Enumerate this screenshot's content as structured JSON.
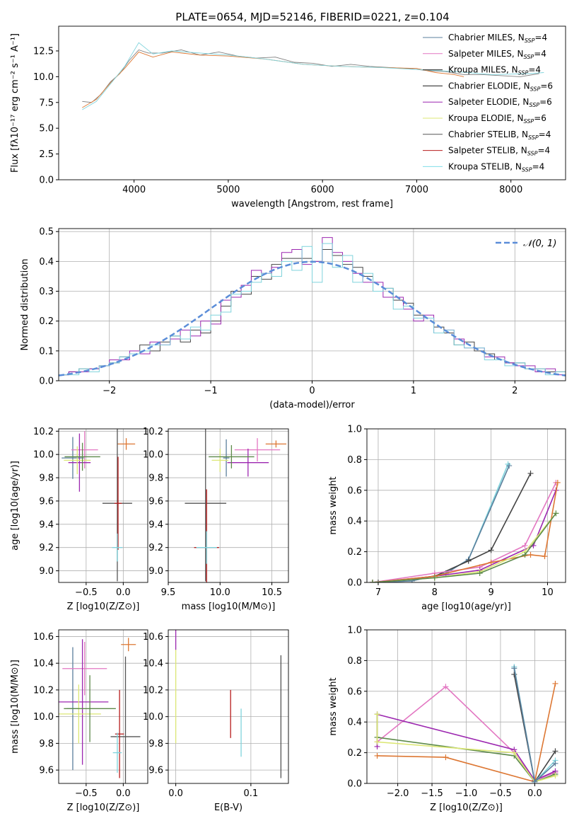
{
  "figure_title": "PLATE=0654, MJD=52146, FIBERID=0221, z=0.104",
  "legend_series": [
    {
      "label": "Chabrier MILES, N",
      "sub": "SSP",
      "suffix": "=4",
      "color": "#5b7f9c"
    },
    {
      "label": "Salpeter MILES, N",
      "sub": "SSP",
      "suffix": "=4",
      "color": "#e377c2"
    },
    {
      "label": "Kroupa MILES, N",
      "sub": "SSP",
      "suffix": "=4",
      "color": "#2a2a2a"
    },
    {
      "label": "Chabrier ELODIE, N",
      "sub": "SSP",
      "suffix": "=6",
      "color": "#1f1f1f"
    },
    {
      "label": "Salpeter ELODIE, N",
      "sub": "SSP",
      "suffix": "=6",
      "color": "#9c27b0"
    },
    {
      "label": "Kroupa ELODIE, N",
      "sub": "SSP",
      "suffix": "=6",
      "color": "#dce775"
    },
    {
      "label": "Chabrier STELIB, N",
      "sub": "SSP",
      "suffix": "=4",
      "color": "#555555"
    },
    {
      "label": "Salpeter STELIB, N",
      "sub": "SSP",
      "suffix": "=4",
      "color": "#b71c1c"
    },
    {
      "label": "Kroupa STELIB, N",
      "sub": "SSP",
      "suffix": "=4",
      "color": "#80deea"
    }
  ],
  "chart_data": [
    {
      "id": "spectrum",
      "type": "line",
      "xlabel": "wavelength [Angstrom, rest frame]",
      "ylabel": "Flux [fλ10⁻¹⁷ erg cm⁻² s⁻¹ A⁻¹]",
      "xlim": [
        3200,
        8580
      ],
      "ylim": [
        0,
        14.9
      ],
      "xticks": [
        4000,
        5000,
        6000,
        7000,
        8000
      ],
      "yticks": [
        0.0,
        2.5,
        5.0,
        7.5,
        10.0,
        12.5
      ],
      "series": [
        {
          "color": "#808080",
          "x": [
            3450,
            3550,
            3650,
            3750,
            3850,
            3950,
            4050,
            4150,
            4300,
            4500,
            4700,
            4900,
            5100,
            5300,
            5500,
            5700,
            5900,
            6100,
            6300,
            6500,
            6700,
            6900,
            7100,
            7300,
            7500,
            7700,
            7900,
            8100,
            8300
          ],
          "y": [
            7.6,
            7.5,
            8.3,
            9.5,
            10.3,
            11.6,
            12.6,
            12.3,
            12.3,
            12.6,
            12.1,
            12.4,
            12.0,
            11.8,
            11.9,
            11.4,
            11.3,
            11.0,
            11.2,
            11.0,
            10.9,
            10.8,
            10.6,
            10.5,
            10.2,
            10.2,
            10.1,
            10.0,
            10.3
          ]
        },
        {
          "color": "#dd7733",
          "x": [
            3450,
            3600,
            3750,
            3900,
            4050,
            4200,
            4400,
            4700,
            5000,
            5400,
            5800,
            6200,
            6600,
            7000,
            7200,
            7400,
            7500
          ],
          "y": [
            7.0,
            7.8,
            9.4,
            10.8,
            12.4,
            11.9,
            12.4,
            12.1,
            12.0,
            11.7,
            11.2,
            11.0,
            10.9,
            10.8,
            10.4,
            10.2,
            10.0
          ]
        },
        {
          "color": "#7fd3dc",
          "x": [
            3450,
            3600,
            3750,
            3900,
            4050,
            4200,
            4400,
            4700,
            5000,
            5400,
            5800,
            6200,
            6600,
            7000,
            7400,
            7800,
            8200,
            8350
          ],
          "y": [
            6.8,
            7.6,
            9.3,
            11.0,
            13.3,
            12.2,
            12.5,
            12.3,
            12.1,
            11.7,
            11.2,
            11.0,
            10.9,
            10.7,
            10.5,
            10.2,
            10.3,
            10.4
          ]
        }
      ]
    },
    {
      "id": "residuals",
      "type": "bar",
      "xlabel": "(data-model)/error",
      "ylabel": "Normed distribution",
      "xlim": [
        -2.5,
        2.5
      ],
      "ylim": [
        0,
        0.51
      ],
      "xticks": [
        -2,
        -1,
        0,
        1,
        2
      ],
      "yticks": [
        0.0,
        0.1,
        0.2,
        0.3,
        0.4,
        0.5
      ],
      "legend": "𝒩(0, 1)",
      "bin_edges": [
        -2.5,
        -2.4,
        -2.3,
        -2.2,
        -2.1,
        -2.0,
        -1.9,
        -1.8,
        -1.7,
        -1.6,
        -1.5,
        -1.4,
        -1.3,
        -1.2,
        -1.1,
        -1.0,
        -0.9,
        -0.8,
        -0.7,
        -0.6,
        -0.5,
        -0.4,
        -0.3,
        -0.2,
        -0.1,
        0.0,
        0.1,
        0.2,
        0.3,
        0.4,
        0.5,
        0.6,
        0.7,
        0.8,
        0.9,
        1.0,
        1.1,
        1.2,
        1.3,
        1.4,
        1.5,
        1.6,
        1.7,
        1.8,
        1.9,
        2.0,
        2.1,
        2.2,
        2.3,
        2.4,
        2.5
      ],
      "series": [
        {
          "color": "#444444",
          "values": [
            0.02,
            0.03,
            0.04,
            0.04,
            0.05,
            0.06,
            0.08,
            0.09,
            0.12,
            0.1,
            0.13,
            0.15,
            0.13,
            0.17,
            0.16,
            0.2,
            0.25,
            0.3,
            0.29,
            0.35,
            0.34,
            0.39,
            0.41,
            0.41,
            0.41,
            0.4,
            0.44,
            0.42,
            0.39,
            0.38,
            0.35,
            0.3,
            0.31,
            0.27,
            0.26,
            0.22,
            0.21,
            0.18,
            0.16,
            0.12,
            0.13,
            0.1,
            0.09,
            0.07,
            0.06,
            0.06,
            0.04,
            0.04,
            0.03,
            0.03
          ]
        },
        {
          "color": "#9c27b0",
          "values": [
            0.02,
            0.03,
            0.03,
            0.04,
            0.05,
            0.07,
            0.07,
            0.1,
            0.09,
            0.13,
            0.12,
            0.14,
            0.17,
            0.15,
            0.2,
            0.19,
            0.27,
            0.28,
            0.32,
            0.37,
            0.36,
            0.38,
            0.43,
            0.44,
            0.39,
            0.4,
            0.48,
            0.43,
            0.4,
            0.36,
            0.33,
            0.33,
            0.28,
            0.28,
            0.24,
            0.2,
            0.22,
            0.16,
            0.17,
            0.14,
            0.11,
            0.11,
            0.08,
            0.08,
            0.06,
            0.05,
            0.05,
            0.03,
            0.04,
            0.02
          ]
        },
        {
          "color": "#7fd3dc",
          "values": [
            0.02,
            0.02,
            0.04,
            0.03,
            0.05,
            0.06,
            0.08,
            0.09,
            0.1,
            0.12,
            0.12,
            0.15,
            0.14,
            0.18,
            0.17,
            0.22,
            0.23,
            0.29,
            0.3,
            0.33,
            0.36,
            0.35,
            0.4,
            0.37,
            0.45,
            0.33,
            0.46,
            0.38,
            0.42,
            0.33,
            0.36,
            0.3,
            0.31,
            0.24,
            0.25,
            0.21,
            0.21,
            0.16,
            0.17,
            0.12,
            0.11,
            0.11,
            0.07,
            0.07,
            0.05,
            0.06,
            0.04,
            0.04,
            0.02,
            0.03
          ]
        }
      ],
      "normal_curve": {
        "color": "#5b8dd8",
        "mean": 0,
        "sd": 1
      }
    },
    {
      "id": "age_vs_Z",
      "type": "scatter",
      "xlabel": "Z [log10(Z/Z⊙)]",
      "ylabel": "age  [log10(age/yr)]",
      "xlim": [
        -0.87,
        0.33
      ],
      "ylim": [
        8.9,
        10.22
      ],
      "xticks": [
        -0.5,
        0.0
      ],
      "yticks": [
        9.0,
        9.2,
        9.4,
        9.6,
        9.8,
        10.0,
        10.2
      ],
      "points": [
        {
          "color": "#5b7f9c",
          "x": -0.68,
          "y": 9.97,
          "xerr": 0.15,
          "yerr": 0.18
        },
        {
          "color": "#e377c2",
          "x": -0.52,
          "y": 10.04,
          "xerr": 0.18,
          "yerr": 0.16
        },
        {
          "color": "#9c27b0",
          "x": -0.59,
          "y": 9.93,
          "xerr": 0.15,
          "yerr": 0.25
        },
        {
          "color": "#dce775",
          "x": -0.62,
          "y": 9.95,
          "xerr": 0.18,
          "yerr": 0.12
        },
        {
          "color": "#5d8a4a",
          "x": -0.55,
          "y": 9.98,
          "xerr": 0.24,
          "yerr": 0.12
        },
        {
          "color": "#dd7733",
          "x": 0.04,
          "y": 10.09,
          "xerr": 0.12,
          "yerr": 0.05
        },
        {
          "color": "#555555",
          "x": -0.08,
          "y": 9.58,
          "xerr": 0.2,
          "yerr": 0.67
        },
        {
          "color": "#b71c1c",
          "x": -0.07,
          "y": 9.58,
          "xerr": 0.05,
          "yerr": 0.4
        },
        {
          "color": "#7fd3dc",
          "x": -0.08,
          "y": 9.2,
          "xerr": 0.07,
          "yerr": 0.12
        }
      ]
    },
    {
      "id": "age_vs_mass",
      "type": "scatter",
      "xlabel": "mass [log10(M/M⊙)]",
      "ylabel": "",
      "xlim": [
        9.5,
        10.66
      ],
      "ylim": [
        8.9,
        10.22
      ],
      "xticks": [
        9.5,
        10.0,
        10.5
      ],
      "yticks": [
        9.0,
        9.2,
        9.4,
        9.6,
        9.8,
        10.0,
        10.2
      ],
      "points": [
        {
          "color": "#5b7f9c",
          "x": 10.06,
          "y": 9.97,
          "xerr": 0.03,
          "yerr": 0.16
        },
        {
          "color": "#e377c2",
          "x": 10.36,
          "y": 10.04,
          "xerr": 0.22,
          "yerr": 0.1
        },
        {
          "color": "#9c27b0",
          "x": 10.27,
          "y": 9.93,
          "xerr": 0.2,
          "yerr": 0.12
        },
        {
          "color": "#dce775",
          "x": 10.0,
          "y": 9.95,
          "xerr": 0.08,
          "yerr": 0.1
        },
        {
          "color": "#5d8a4a",
          "x": 10.11,
          "y": 9.98,
          "xerr": 0.22,
          "yerr": 0.1
        },
        {
          "color": "#dd7733",
          "x": 10.54,
          "y": 10.09,
          "xerr": 0.1,
          "yerr": 0.03
        },
        {
          "color": "#555555",
          "x": 9.86,
          "y": 9.58,
          "xerr": 0.2,
          "yerr": 0.67
        },
        {
          "color": "#b71c1c",
          "x": 9.87,
          "y": 9.2,
          "xerr": 0.12,
          "yerr": 0.5
        },
        {
          "color": "#7fd3dc",
          "x": 9.87,
          "y": 9.2,
          "xerr": 0.1,
          "yerr": 0.14
        }
      ]
    },
    {
      "id": "massweight_vs_age",
      "type": "line",
      "xlabel": "age  [log10(age/yr)]",
      "ylabel": "mass weight",
      "xlim": [
        6.8,
        10.32
      ],
      "ylim": [
        0,
        1.0
      ],
      "xticks": [
        7,
        8,
        9,
        10
      ],
      "yticks": [
        0.0,
        0.2,
        0.4,
        0.6,
        0.8,
        1.0
      ],
      "series": [
        {
          "color": "#7fd3dc",
          "x": [
            6.9,
            7.6,
            8.2,
            8.6,
            9.3
          ],
          "y": [
            0.0,
            0.01,
            0.06,
            0.15,
            0.77
          ]
        },
        {
          "color": "#5b7f9c",
          "x": [
            6.9,
            7.6,
            8.2,
            8.6,
            9.32
          ],
          "y": [
            0.0,
            0.01,
            0.06,
            0.15,
            0.76
          ]
        },
        {
          "color": "#444444",
          "x": [
            7.0,
            8.0,
            8.6,
            9.0,
            9.7
          ],
          "y": [
            0.0,
            0.04,
            0.14,
            0.21,
            0.71
          ]
        },
        {
          "color": "#e377c2",
          "x": [
            6.9,
            8.0,
            8.8,
            9.6,
            10.15
          ],
          "y": [
            0.0,
            0.06,
            0.1,
            0.24,
            0.65
          ]
        },
        {
          "color": "#9c27b0",
          "x": [
            6.9,
            8.0,
            8.8,
            9.75,
            10.15
          ],
          "y": [
            0.0,
            0.04,
            0.08,
            0.24,
            0.6
          ]
        },
        {
          "color": "#dd7733",
          "x": [
            6.9,
            8.0,
            9.0,
            9.7,
            9.95,
            10.18
          ],
          "y": [
            0.0,
            0.04,
            0.13,
            0.18,
            0.17,
            0.65
          ]
        },
        {
          "color": "#dce775",
          "x": [
            6.9,
            8.0,
            8.8,
            9.6,
            10.15
          ],
          "y": [
            0.0,
            0.03,
            0.07,
            0.2,
            0.45
          ]
        },
        {
          "color": "#5d8a4a",
          "x": [
            6.9,
            8.0,
            8.8,
            9.6,
            10.15
          ],
          "y": [
            0.0,
            0.03,
            0.06,
            0.18,
            0.45
          ]
        }
      ]
    },
    {
      "id": "mass_vs_Z",
      "type": "scatter",
      "xlabel": "Z [log10(Z/Z⊙)]",
      "ylabel": "mass [log10(M/M⊙)]",
      "xlim": [
        -0.87,
        0.33
      ],
      "ylim": [
        9.5,
        10.65
      ],
      "xticks": [
        -0.5,
        0.0
      ],
      "yticks": [
        9.6,
        9.8,
        10.0,
        10.2,
        10.4,
        10.6
      ],
      "points": [
        {
          "color": "#5b7f9c",
          "x": -0.68,
          "y": 10.06,
          "xerr": 0.08,
          "yerr": 0.46
        },
        {
          "color": "#e377c2",
          "x": -0.52,
          "y": 10.36,
          "xerr": 0.3,
          "yerr": 0.2
        },
        {
          "color": "#9c27b0",
          "x": -0.55,
          "y": 10.11,
          "xerr": 0.35,
          "yerr": 0.47
        },
        {
          "color": "#dce775",
          "x": -0.6,
          "y": 10.02,
          "xerr": 0.3,
          "yerr": 0.22
        },
        {
          "color": "#5d8a4a",
          "x": -0.45,
          "y": 10.06,
          "xerr": 0.35,
          "yerr": 0.25
        },
        {
          "color": "#dd7733",
          "x": 0.07,
          "y": 10.54,
          "xerr": 0.1,
          "yerr": 0.05
        },
        {
          "color": "#555555",
          "x": 0.03,
          "y": 9.85,
          "xerr": 0.2,
          "yerr": 0.6
        },
        {
          "color": "#b71c1c",
          "x": -0.05,
          "y": 9.87,
          "xerr": 0.06,
          "yerr": 0.33
        },
        {
          "color": "#7fd3dc",
          "x": -0.08,
          "y": 9.73,
          "xerr": 0.06,
          "yerr": 0.15
        }
      ]
    },
    {
      "id": "mass_vs_EBV",
      "type": "scatter",
      "xlabel": "E(B-V)",
      "ylabel": "",
      "xlim": [
        -0.01,
        0.15
      ],
      "ylim": [
        9.5,
        10.65
      ],
      "xticks": [
        0.0,
        0.1
      ],
      "yticks": [
        9.6,
        9.8,
        10.0,
        10.2,
        10.4,
        10.6
      ],
      "points": [
        {
          "color": "#9c27b0",
          "x": 0.0,
          "y": 10.58,
          "xerr": 0,
          "yerr": 0.08
        },
        {
          "color": "#dce775",
          "x": 0.0,
          "y": 10.15,
          "xerr": 0,
          "yerr": 0.35
        },
        {
          "color": "#b71c1c",
          "x": 0.073,
          "y": 10.02,
          "xerr": 0,
          "yerr": 0.18
        },
        {
          "color": "#7fd3dc",
          "x": 0.087,
          "y": 9.88,
          "xerr": 0,
          "yerr": 0.18
        },
        {
          "color": "#555555",
          "x": 0.14,
          "y": 10.0,
          "xerr": 0,
          "yerr": 0.46
        }
      ]
    },
    {
      "id": "massweight_vs_Z",
      "type": "line",
      "xlabel": "Z [log10(Z/Z⊙)]",
      "ylabel": "mass weight",
      "xlim": [
        -2.45,
        0.45
      ],
      "ylim": [
        0,
        1.0
      ],
      "xticks": [
        -2.0,
        -1.5,
        -1.0,
        -0.5,
        0.0
      ],
      "yticks": [
        0.0,
        0.2,
        0.4,
        0.6,
        0.8,
        1.0
      ],
      "series": [
        {
          "color": "#e377c2",
          "x": [
            -2.3,
            -1.3,
            -0.3,
            0.0,
            0.3
          ],
          "y": [
            0.27,
            0.63,
            0.2,
            0.02,
            0.07
          ]
        },
        {
          "color": "#9c27b0",
          "x": [
            -2.3,
            -2.3,
            -0.3,
            0.0,
            0.3
          ],
          "y": [
            0.24,
            0.45,
            0.22,
            0.02,
            0.08
          ]
        },
        {
          "color": "#5d8a4a",
          "x": [
            -2.3,
            -2.3,
            -0.3,
            0.0,
            0.3
          ],
          "y": [
            0.45,
            0.3,
            0.18,
            0.01,
            0.06
          ]
        },
        {
          "color": "#dce775",
          "x": [
            -2.3,
            -2.3,
            -0.3,
            0.0,
            0.3
          ],
          "y": [
            0.45,
            0.27,
            0.2,
            0.01,
            0.05
          ]
        },
        {
          "color": "#dd7733",
          "x": [
            -2.3,
            -1.3,
            0.0,
            0.3
          ],
          "y": [
            0.18,
            0.17,
            0.01,
            0.65
          ]
        },
        {
          "color": "#444444",
          "x": [
            -0.3,
            0.0,
            0.3
          ],
          "y": [
            0.71,
            0.01,
            0.21
          ]
        },
        {
          "color": "#7fd3dc",
          "x": [
            -0.3,
            0.0,
            0.3
          ],
          "y": [
            0.76,
            0.01,
            0.15
          ]
        },
        {
          "color": "#5b7f9c",
          "x": [
            -0.3,
            0.0,
            0.3
          ],
          "y": [
            0.75,
            0.01,
            0.13
          ]
        }
      ]
    }
  ]
}
